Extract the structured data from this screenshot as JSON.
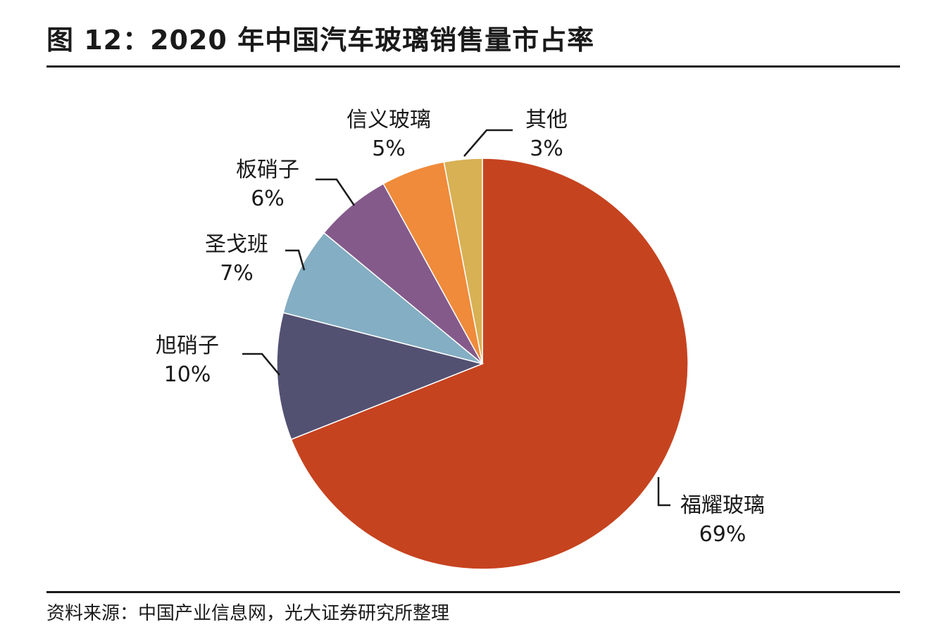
{
  "title": "图 12：2020 年中国汽车玻璃销售量市占率",
  "source": "资料来源：中国产业信息网，光大证券研究所整理",
  "chart_data": {
    "type": "pie",
    "title": "2020 年中国汽车玻璃销售量市占率",
    "start": "12 o'clock",
    "direction": "clockwise",
    "slices": [
      {
        "name": "福耀玻璃",
        "value": 69,
        "pct_label": "69%",
        "color": "#C6431F"
      },
      {
        "name": "旭硝子",
        "value": 10,
        "pct_label": "10%",
        "color": "#535172"
      },
      {
        "name": "圣戈班",
        "value": 7,
        "pct_label": "7%",
        "color": "#84AEC3"
      },
      {
        "name": "板硝子",
        "value": 6,
        "pct_label": "6%",
        "color": "#845A8B"
      },
      {
        "name": "信义玻璃",
        "value": 5,
        "pct_label": "5%",
        "color": "#EF8B3A"
      },
      {
        "name": "其他",
        "value": 3,
        "pct_label": "3%",
        "color": "#D8B155"
      }
    ]
  }
}
